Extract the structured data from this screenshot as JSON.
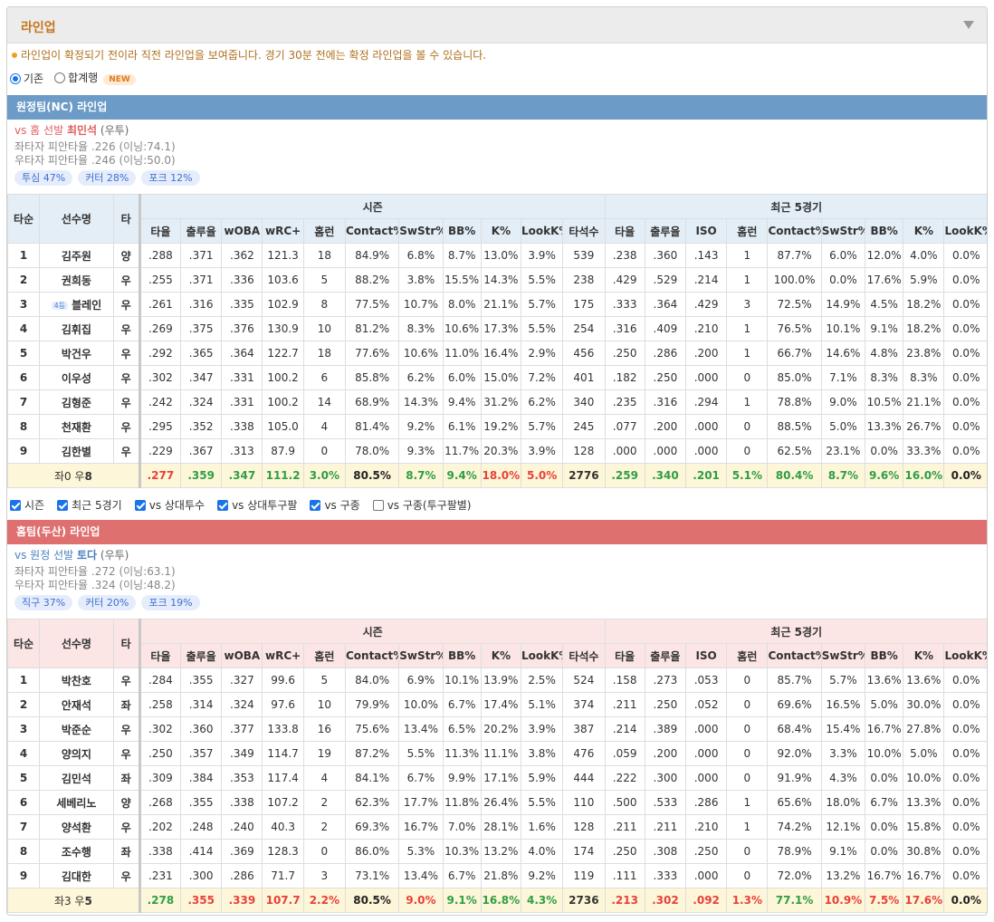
{
  "header": {
    "title": "라인업"
  },
  "notice": "라인업이 확정되기 전이라 직전 라인업을 보여줍니다. 경기 30분 전에는 확정 라인업을 볼 수 있습니다.",
  "view_options": [
    {
      "label": "기존",
      "selected": true
    },
    {
      "label": "합계행",
      "selected": false,
      "badge": "NEW"
    }
  ],
  "columns": {
    "fixed": [
      "타순",
      "선수명",
      "타"
    ],
    "groups": [
      {
        "title": "시즌",
        "columns": [
          "타율",
          "출루율",
          "wOBA",
          "wRC+",
          "홈런",
          "Contact%",
          "SwStr%",
          "BB%",
          "K%",
          "LookK%",
          "타석수"
        ]
      },
      {
        "title": "최근 5경기",
        "columns": [
          "타율",
          "출루율",
          "ISO",
          "홈런",
          "Contact%",
          "SwStr%",
          "BB%",
          "K%",
          "LookK%"
        ]
      }
    ]
  },
  "filters": [
    {
      "label": "시즌",
      "checked": true
    },
    {
      "label": "최근 5경기",
      "checked": true
    },
    {
      "label": "vs 상대투수",
      "checked": true
    },
    {
      "label": "vs 상대투구팔",
      "checked": true
    },
    {
      "label": "vs 구종",
      "checked": true
    },
    {
      "label": "vs 구종(투구팔별)",
      "checked": false
    }
  ],
  "teams": [
    {
      "title": "원정팀(NC) 라인업",
      "bar_color": "#6b9bc6",
      "header_bg": "#e4eef6",
      "pitcher": {
        "prefix": "vs 홈 선발",
        "name": "최민석",
        "hand": "(우투)",
        "color": "#e0605f"
      },
      "splits": [
        "좌타자 피안타율 .226 (이닝:74.1)",
        "우타자 피안타율 .246 (이닝:50.0)"
      ],
      "pitches": [
        "투심 47%",
        "커터 28%",
        "포크 12%"
      ],
      "rows": [
        [
          "1",
          "김주원",
          "양",
          ".288",
          ".371",
          ".362",
          "121.3",
          "18",
          "84.9%",
          "6.8%",
          "8.7%",
          "13.0%",
          "3.9%",
          "539",
          ".238",
          ".360",
          ".143",
          "1",
          "87.7%",
          "6.0%",
          "12.0%",
          "4.0%",
          "0.0%"
        ],
        [
          "2",
          "권희동",
          "우",
          ".255",
          ".371",
          ".336",
          "103.6",
          "5",
          "88.2%",
          "3.8%",
          "15.5%",
          "14.3%",
          "5.5%",
          "238",
          ".429",
          ".529",
          ".214",
          "1",
          "100.0%",
          "0.0%",
          "17.6%",
          "5.9%",
          "0.0%"
        ],
        [
          "3",
          {
            "badge": "4등",
            "name": "블레인"
          },
          "우",
          ".261",
          ".316",
          ".335",
          "102.9",
          "8",
          "77.5%",
          "10.7%",
          "8.0%",
          "21.1%",
          "5.7%",
          "175",
          ".333",
          ".364",
          ".429",
          "3",
          "72.5%",
          "14.9%",
          "4.5%",
          "18.2%",
          "0.0%"
        ],
        [
          "4",
          "김휘집",
          "우",
          ".269",
          ".375",
          ".376",
          "130.9",
          "10",
          "81.2%",
          "8.3%",
          "10.6%",
          "17.3%",
          "5.5%",
          "254",
          ".316",
          ".409",
          ".210",
          "1",
          "76.5%",
          "10.1%",
          "9.1%",
          "18.2%",
          "0.0%"
        ],
        [
          "5",
          "박건우",
          "우",
          ".292",
          ".365",
          ".364",
          "122.7",
          "18",
          "77.6%",
          "10.6%",
          "11.0%",
          "16.4%",
          "2.9%",
          "456",
          ".250",
          ".286",
          ".200",
          "1",
          "66.7%",
          "14.6%",
          "4.8%",
          "23.8%",
          "0.0%"
        ],
        [
          "6",
          "이우성",
          "우",
          ".302",
          ".347",
          ".331",
          "100.2",
          "6",
          "85.8%",
          "6.2%",
          "6.0%",
          "15.0%",
          "7.2%",
          "401",
          ".182",
          ".250",
          ".000",
          "0",
          "85.0%",
          "7.1%",
          "8.3%",
          "8.3%",
          "0.0%"
        ],
        [
          "7",
          "김형준",
          "우",
          ".242",
          ".324",
          ".331",
          "100.2",
          "14",
          "68.9%",
          "14.3%",
          "9.4%",
          "31.2%",
          "6.2%",
          "340",
          ".235",
          ".316",
          ".294",
          "1",
          "78.8%",
          "9.0%",
          "10.5%",
          "21.1%",
          "0.0%"
        ],
        [
          "8",
          "천재환",
          "우",
          ".295",
          ".352",
          ".338",
          "105.0",
          "4",
          "81.4%",
          "9.2%",
          "6.1%",
          "19.2%",
          "5.7%",
          "245",
          ".077",
          ".200",
          ".000",
          "0",
          "88.5%",
          "5.0%",
          "13.3%",
          "26.7%",
          "0.0%"
        ],
        [
          "9",
          "김한별",
          "우",
          ".229",
          ".367",
          ".313",
          "87.9",
          "0",
          "78.0%",
          "9.3%",
          "11.7%",
          "20.3%",
          "3.9%",
          "128",
          ".000",
          ".000",
          ".000",
          "0",
          "62.5%",
          "23.1%",
          "0.0%",
          "33.3%",
          "0.0%"
        ]
      ],
      "total": {
        "label": [
          "좌0 우",
          "8"
        ],
        "cells": [
          {
            "text": ".277",
            "color": "#e8413a"
          },
          {
            "text": ".359",
            "color": "#2f9e44"
          },
          {
            "text": ".347",
            "color": "#2f9e44"
          },
          {
            "text": "111.2",
            "color": "#2f9e44"
          },
          {
            "text": "3.0%",
            "color": "#2f9e44"
          },
          {
            "text": "80.5%",
            "color": "#222222"
          },
          {
            "text": "8.7%",
            "color": "#2f9e44"
          },
          {
            "text": "9.4%",
            "color": "#2f9e44"
          },
          {
            "text": "18.0%",
            "color": "#e8413a"
          },
          {
            "text": "5.0%",
            "color": "#e8413a"
          },
          {
            "text": "2776",
            "color": "#333333"
          },
          {
            "text": ".259",
            "color": "#2f9e44"
          },
          {
            "text": ".340",
            "color": "#2f9e44"
          },
          {
            "text": ".201",
            "color": "#2f9e44"
          },
          {
            "text": "5.1%",
            "color": "#2f9e44"
          },
          {
            "text": "80.4%",
            "color": "#2f9e44"
          },
          {
            "text": "8.7%",
            "color": "#2f9e44"
          },
          {
            "text": "9.6%",
            "color": "#2f9e44"
          },
          {
            "text": "16.0%",
            "color": "#2f9e44"
          },
          {
            "text": "0.0%",
            "color": "#222222"
          }
        ]
      }
    },
    {
      "title": "홈팀(두산) 라인업",
      "bar_color": "#df7070",
      "header_bg": "#fbe5e5",
      "pitcher": {
        "prefix": "vs 원정 선발",
        "name": "토다",
        "hand": "(우투)",
        "color": "#4a80c0"
      },
      "splits": [
        "좌타자 피안타율 .272 (이닝:63.1)",
        "우타자 피안타율 .324 (이닝:48.2)"
      ],
      "pitches": [
        "직구 37%",
        "커터 20%",
        "포크 19%"
      ],
      "rows": [
        [
          "1",
          "박찬호",
          "우",
          ".284",
          ".355",
          ".327",
          "99.6",
          "5",
          "84.0%",
          "6.9%",
          "10.1%",
          "13.9%",
          "2.5%",
          "524",
          ".158",
          ".273",
          ".053",
          "0",
          "85.7%",
          "5.7%",
          "13.6%",
          "13.6%",
          "0.0%"
        ],
        [
          "2",
          "안재석",
          "좌",
          ".258",
          ".314",
          ".324",
          "97.6",
          "10",
          "79.9%",
          "10.0%",
          "6.7%",
          "17.4%",
          "5.1%",
          "374",
          ".211",
          ".250",
          ".052",
          "0",
          "69.6%",
          "16.5%",
          "5.0%",
          "30.0%",
          "0.0%"
        ],
        [
          "3",
          "박준순",
          "우",
          ".302",
          ".360",
          ".377",
          "133.8",
          "16",
          "75.6%",
          "13.4%",
          "6.5%",
          "20.2%",
          "3.9%",
          "387",
          ".214",
          ".389",
          ".000",
          "0",
          "68.4%",
          "15.4%",
          "16.7%",
          "27.8%",
          "0.0%"
        ],
        [
          "4",
          "양의지",
          "우",
          ".250",
          ".357",
          ".349",
          "114.7",
          "19",
          "87.2%",
          "5.5%",
          "11.3%",
          "11.1%",
          "3.8%",
          "476",
          ".059",
          ".200",
          ".000",
          "0",
          "92.0%",
          "3.3%",
          "10.0%",
          "5.0%",
          "0.0%"
        ],
        [
          "5",
          "김민석",
          "좌",
          ".309",
          ".384",
          ".353",
          "117.4",
          "4",
          "84.1%",
          "6.7%",
          "9.9%",
          "17.1%",
          "5.9%",
          "444",
          ".222",
          ".300",
          ".000",
          "0",
          "91.9%",
          "4.3%",
          "0.0%",
          "10.0%",
          "0.0%"
        ],
        [
          "6",
          "세베리노",
          "양",
          ".268",
          ".355",
          ".338",
          "107.2",
          "2",
          "62.3%",
          "17.7%",
          "11.8%",
          "26.4%",
          "5.5%",
          "110",
          ".500",
          ".533",
          ".286",
          "1",
          "65.6%",
          "18.0%",
          "6.7%",
          "13.3%",
          "0.0%"
        ],
        [
          "7",
          "양석환",
          "우",
          ".202",
          ".248",
          ".240",
          "40.3",
          "2",
          "69.3%",
          "16.7%",
          "7.0%",
          "28.1%",
          "1.6%",
          "128",
          ".211",
          ".211",
          ".210",
          "1",
          "74.2%",
          "12.1%",
          "0.0%",
          "15.8%",
          "0.0%"
        ],
        [
          "8",
          "조수행",
          "좌",
          ".338",
          ".414",
          ".369",
          "128.3",
          "0",
          "86.0%",
          "5.3%",
          "10.3%",
          "13.2%",
          "4.0%",
          "174",
          ".250",
          ".308",
          ".250",
          "0",
          "78.9%",
          "9.1%",
          "0.0%",
          "30.8%",
          "0.0%"
        ],
        [
          "9",
          "김대한",
          "우",
          ".231",
          ".300",
          ".286",
          "71.7",
          "3",
          "73.1%",
          "13.4%",
          "6.7%",
          "21.8%",
          "9.2%",
          "119",
          ".111",
          ".333",
          ".000",
          "0",
          "72.0%",
          "13.2%",
          "16.7%",
          "16.7%",
          "0.0%"
        ]
      ],
      "total": {
        "label": [
          "좌3 우",
          "5"
        ],
        "cells": [
          {
            "text": ".278",
            "color": "#2f9e44"
          },
          {
            "text": ".355",
            "color": "#e8413a"
          },
          {
            "text": ".339",
            "color": "#e8413a"
          },
          {
            "text": "107.7",
            "color": "#e8413a"
          },
          {
            "text": "2.2%",
            "color": "#e8413a"
          },
          {
            "text": "80.5%",
            "color": "#222222"
          },
          {
            "text": "9.0%",
            "color": "#e8413a"
          },
          {
            "text": "9.1%",
            "color": "#2f9e44"
          },
          {
            "text": "16.8%",
            "color": "#2f9e44"
          },
          {
            "text": "4.3%",
            "color": "#2f9e44"
          },
          {
            "text": "2736",
            "color": "#333333"
          },
          {
            "text": ".213",
            "color": "#e8413a"
          },
          {
            "text": ".302",
            "color": "#e8413a"
          },
          {
            "text": ".092",
            "color": "#e8413a"
          },
          {
            "text": "1.3%",
            "color": "#e8413a"
          },
          {
            "text": "77.1%",
            "color": "#2f9e44"
          },
          {
            "text": "10.9%",
            "color": "#e8413a"
          },
          {
            "text": "7.5%",
            "color": "#e8413a"
          },
          {
            "text": "17.6%",
            "color": "#e8413a"
          },
          {
            "text": "0.0%",
            "color": "#222222"
          }
        ]
      }
    }
  ]
}
